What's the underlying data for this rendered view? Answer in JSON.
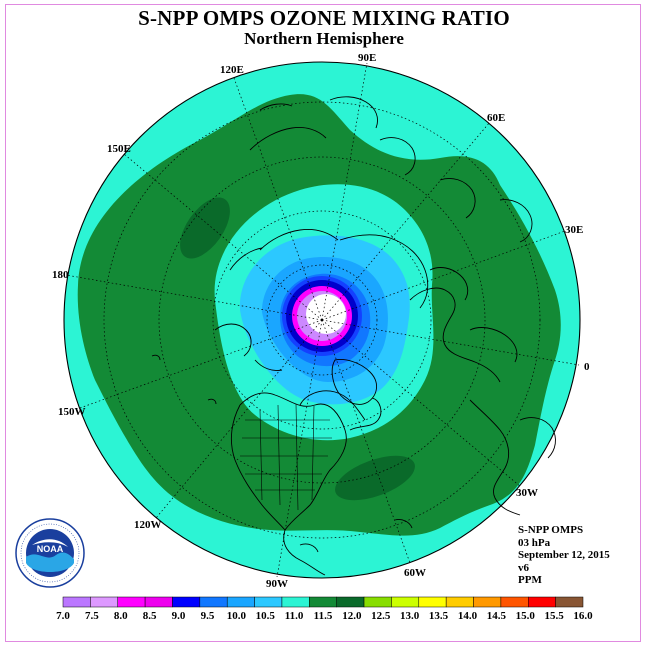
{
  "header": {
    "title": "S-NPP OMPS OZONE MIXING RATIO",
    "subtitle": "Northern Hemisphere"
  },
  "map": {
    "longitude_labels": [
      "90E",
      "60E",
      "30E",
      "0",
      "30W",
      "60W",
      "90W",
      "120W",
      "150W",
      "180",
      "150E",
      "120E"
    ],
    "ocean_color": "#2cf4d4",
    "mid_band_color": "#138a36",
    "pole_ring_colors": [
      "#33ddff",
      "#1ab2ff",
      "#0a7ae6",
      "#1440ff",
      "#0000cc",
      "#ff00ff",
      "#cc88ff",
      "#ffffff"
    ]
  },
  "info": {
    "lines": [
      "S-NPP OMPS",
      "03 hPa",
      "September 12, 2015",
      "v6",
      "PPM"
    ]
  },
  "colorbar": {
    "labels": [
      "7.0",
      "7.5",
      "8.0",
      "8.5",
      "9.0",
      "9.5",
      "10.0",
      "10.5",
      "11.0",
      "11.5",
      "12.0",
      "12.5",
      "13.0",
      "13.5",
      "14.0",
      "14.5",
      "15.0",
      "15.5",
      "16.0"
    ],
    "colors": [
      "#bb77ff",
      "#dd99ff",
      "#ff00ff",
      "#ee00ee",
      "#0000ff",
      "#1177ff",
      "#1aa6ff",
      "#2cc8ff",
      "#2cf4d4",
      "#138a36",
      "#0a6a2a",
      "#88dd00",
      "#ccff00",
      "#ffff00",
      "#ffcc00",
      "#ff9900",
      "#ff5500",
      "#ff0000",
      "#885533"
    ],
    "unit": "PPM"
  },
  "logo": {
    "text": "NOAA",
    "ring_text": "NATIONAL OCEANIC AND ATMOSPHERIC ADMINISTRATION · U.S. DEPARTMENT OF COMMERCE"
  }
}
